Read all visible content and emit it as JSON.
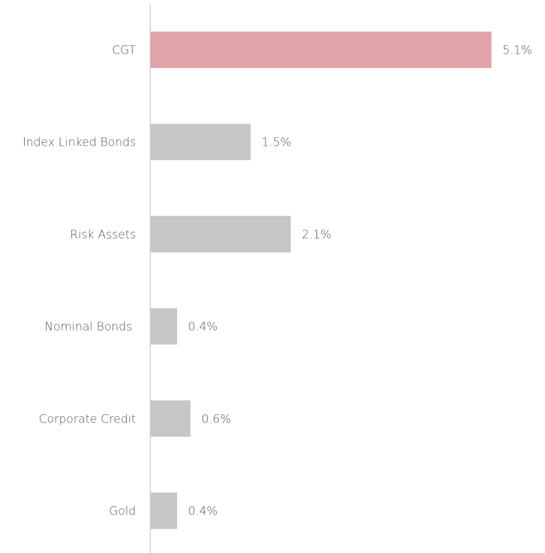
{
  "chart_data": {
    "type": "bar",
    "orientation": "horizontal",
    "categories": [
      "CGT",
      "Index Linked Bonds",
      "Risk Assets",
      "Nominal Bonds ",
      "Corporate Credit",
      "Gold"
    ],
    "values": [
      5.1,
      1.5,
      2.1,
      0.4,
      0.6,
      0.4
    ],
    "value_labels": [
      "5.1%",
      "1.5%",
      "2.1%",
      "0.4%",
      "0.6%",
      "0.4%"
    ],
    "title": "",
    "xlabel": "",
    "ylabel": "",
    "xlim": [
      0,
      5.1
    ],
    "grid": false,
    "legend": "none",
    "colors": {
      "highlight": "#E0A4A8",
      "default": "#C6C6C4",
      "axis": "#D0D0D0",
      "text": "#555555"
    },
    "highlight_index": 0
  }
}
